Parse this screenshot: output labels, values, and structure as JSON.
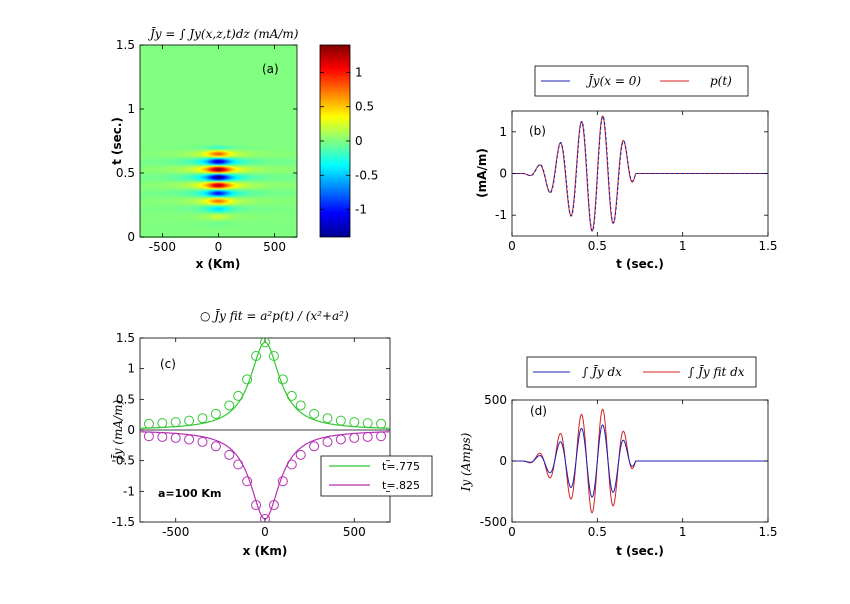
{
  "chart_data": [
    {
      "id": "a",
      "type": "heatmap",
      "panel_label": "(a)",
      "title": "J̄y = ∫ Jy(x,z,t)dz (mA/m)",
      "xlabel": "x (Km)",
      "ylabel": "t (sec.)",
      "xlim": [
        -700,
        700
      ],
      "ylim": [
        0,
        1.5
      ],
      "xticks": [
        -500,
        0,
        500
      ],
      "yticks": [
        0,
        0.5,
        1,
        1.5
      ],
      "colorbar": {
        "range": [
          -1.4,
          1.4
        ],
        "ticks": [
          -1,
          -0.5,
          0,
          0.5,
          1
        ],
        "colormap": "jet"
      },
      "field": {
        "half_width_km": 100,
        "period_s": 0.125,
        "amp_max": 1.4,
        "onset_s": 0.35
      }
    },
    {
      "id": "b",
      "type": "line",
      "panel_label": "(b)",
      "xlabel": "t (sec.)",
      "ylabel": "(mA/m)",
      "xlim": [
        0,
        1.5
      ],
      "ylim": [
        -1.5,
        1.5
      ],
      "xticks": [
        0,
        0.5,
        1,
        1.5
      ],
      "yticks": [
        -1,
        0,
        1
      ],
      "series": [
        {
          "name": "J̄y(x = 0)",
          "color": "#1f1fb4",
          "amplitude": 1.4
        },
        {
          "name": "p(t)",
          "color": "#d42020",
          "amplitude": 1.4
        }
      ],
      "legend": "top"
    },
    {
      "id": "c",
      "type": "line",
      "panel_label": "(c)",
      "title": "○ J̄y fit = a²p(t) / (x²+a²)",
      "xlabel": "x (Km)",
      "ylabel": "J̄y (mA/m)",
      "xlim": [
        -700,
        700
      ],
      "ylim": [
        -1.5,
        1.5
      ],
      "xticks": [
        -500,
        0,
        500
      ],
      "yticks": [
        -1.5,
        -1,
        -0.5,
        0,
        0.5,
        1,
        1.5
      ],
      "annotation": "a=100 Km",
      "a_km": 100,
      "series": [
        {
          "name": "t=.775",
          "color": "#32c832",
          "peak": 1.43
        },
        {
          "name": "t=.825",
          "color": "#b432b4",
          "peak": -1.45
        }
      ],
      "marker_x": [
        -650,
        -575,
        -500,
        -425,
        -350,
        -275,
        -200,
        -150,
        -100,
        -50,
        0,
        50,
        100,
        150,
        200,
        275,
        350,
        425,
        500,
        575,
        650
      ],
      "legend": "bottom-right"
    },
    {
      "id": "d",
      "type": "line",
      "panel_label": "(d)",
      "xlabel": "t (sec.)",
      "ylabel": "Iy (Amps)",
      "xlim": [
        0,
        1.5
      ],
      "ylim": [
        -500,
        500
      ],
      "xticks": [
        0,
        0.5,
        1,
        1.5
      ],
      "yticks": [
        -500,
        0,
        500
      ],
      "series": [
        {
          "name": "∫ J̄y dx",
          "color": "#1f1fb4",
          "amplitude": 300
        },
        {
          "name": "∫ J̄y fit dx",
          "color": "#d42020",
          "amplitude": 430
        }
      ],
      "legend": "top"
    }
  ]
}
